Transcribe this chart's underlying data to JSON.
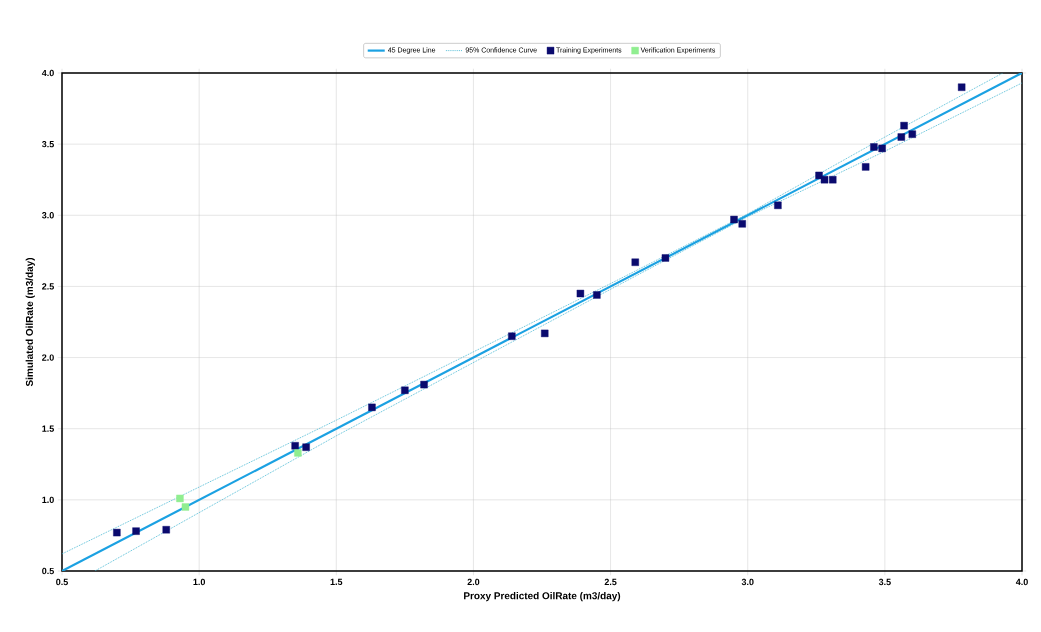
{
  "chart_data": {
    "type": "scatter",
    "xlabel": "Proxy Predicted OilRate (m3/day)",
    "ylabel": "Simulated OilRate (m3/day)",
    "xlim": [
      0.5,
      4.0
    ],
    "ylim": [
      0.5,
      4.0
    ],
    "xticks": [
      {
        "value": 0.5,
        "label": "0.5"
      },
      {
        "value": 1.0,
        "label": "1.0"
      },
      {
        "value": 1.5,
        "label": "1.5"
      },
      {
        "value": 2.0,
        "label": "2.0"
      },
      {
        "value": 2.5,
        "label": "2.5"
      },
      {
        "value": 3.0,
        "label": "3.0"
      },
      {
        "value": 3.5,
        "label": "3.5"
      },
      {
        "value": 4.0,
        "label": "4.0"
      }
    ],
    "yticks": [
      {
        "value": 0.5,
        "label": "0.5"
      },
      {
        "value": 1.0,
        "label": "1.0"
      },
      {
        "value": 1.5,
        "label": "1.5"
      },
      {
        "value": 2.0,
        "label": "2.0"
      },
      {
        "value": 2.5,
        "label": "2.5"
      },
      {
        "value": 3.0,
        "label": "3.0"
      },
      {
        "value": 3.5,
        "label": "3.5"
      },
      {
        "value": 4.0,
        "label": "4.0"
      }
    ],
    "grid": true,
    "legend": "top",
    "series": [
      {
        "name": "45 Degree Line",
        "type": "line",
        "marker": "none",
        "line_style": "solid",
        "color": "#1ba1e2",
        "x": [
          0.5,
          4.0
        ],
        "values": [
          0.5,
          4.0
        ]
      },
      {
        "name": "95% Confidence Curve",
        "type": "line",
        "marker": "none",
        "line_style": "dotted",
        "color": "#3bb3d0",
        "x": [
          0.5,
          1.5,
          2.5,
          3.0,
          3.5,
          3.93
        ],
        "values": [
          0.62,
          1.56,
          2.52,
          3.01,
          3.55,
          4.0
        ]
      },
      {
        "type": "line",
        "marker": "none",
        "line_style": "dotted",
        "color": "#3bb3d0",
        "x": [
          0.62,
          1.5,
          2.5,
          3.0,
          3.5,
          4.0
        ],
        "values": [
          0.5,
          1.45,
          2.48,
          2.99,
          3.45,
          3.93
        ]
      },
      {
        "name": "Training Experiments",
        "marker": "square",
        "color": "#0a0a6e",
        "x": [
          0.7,
          0.77,
          0.88,
          1.35,
          1.39,
          1.63,
          1.75,
          1.82,
          2.14,
          2.26,
          2.39,
          2.45,
          2.59,
          2.7,
          2.95,
          2.98,
          3.11,
          3.26,
          3.28,
          3.31,
          3.43,
          3.46,
          3.49,
          3.57,
          3.56,
          3.6,
          3.78
        ],
        "values": [
          0.77,
          0.78,
          0.79,
          1.38,
          1.37,
          1.65,
          1.77,
          1.81,
          2.15,
          2.17,
          2.45,
          2.44,
          2.67,
          2.7,
          2.97,
          2.94,
          3.07,
          3.28,
          3.25,
          3.25,
          3.34,
          3.48,
          3.47,
          3.63,
          3.55,
          3.57,
          3.9
        ]
      },
      {
        "name": "Verification Experiments",
        "marker": "square",
        "color": "#90ee90",
        "x": [
          0.93,
          0.95,
          1.36
        ],
        "values": [
          1.01,
          0.95,
          1.33
        ]
      }
    ]
  }
}
